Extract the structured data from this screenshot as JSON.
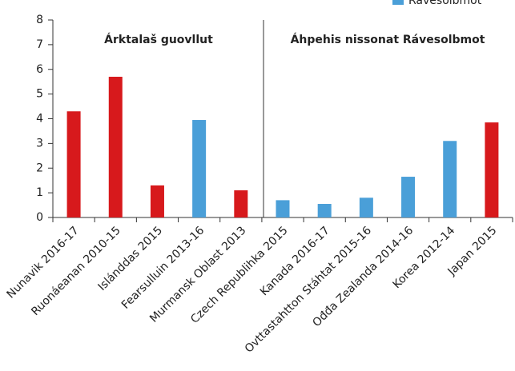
{
  "chart_data": {
    "type": "bar",
    "categories": [
      "Nunavik 2016-17",
      "Ruonáeanan 2010-15",
      "Islánddas 2015",
      "Fearsulluin 2013-16",
      "Murmansk Oblast 2013",
      "Czech Republihka 2015",
      "Kanada 2016-17",
      "Ovttastahtton Stáhtat 2015-16",
      "Ođđa Zealanda 2014-16",
      "Korea 2012-14",
      "Japan 2015"
    ],
    "values": [
      4.3,
      5.7,
      1.3,
      3.95,
      1.1,
      0.7,
      0.55,
      0.8,
      1.65,
      3.1,
      3.85
    ],
    "colors": [
      "#d7191c",
      "#d7191c",
      "#d7191c",
      "#4a9fd8",
      "#d7191c",
      "#4a9fd8",
      "#4a9fd8",
      "#4a9fd8",
      "#4a9fd8",
      "#4a9fd8",
      "#d7191c"
    ],
    "legend": [
      {
        "name": "Rávesolbmot",
        "color": "#4a9fd8"
      }
    ],
    "sections": [
      "Árktalaš guovllut",
      "Áhpehis nissonat Rávesolbmot"
    ],
    "ylim": [
      0,
      8
    ],
    "yticks": [
      0,
      1,
      2,
      3,
      4,
      5,
      6,
      7,
      8
    ]
  }
}
